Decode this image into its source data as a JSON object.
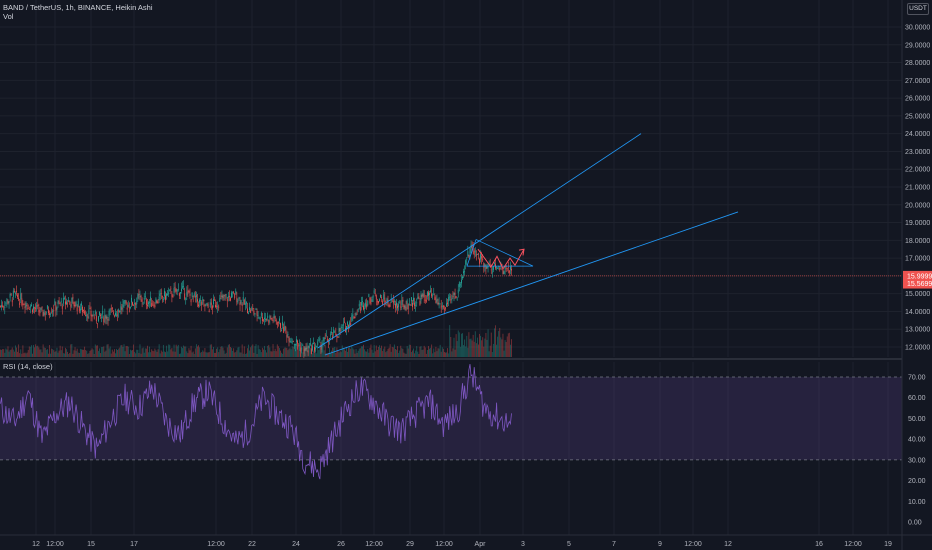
{
  "legend": {
    "symbol": "BAND / TetherUS, 1h, BINANCE, Heikin Ashi",
    "volume": "Vol",
    "rsi": "RSI (14, close)"
  },
  "unit_button": "USDT",
  "colors": {
    "background": "#131722",
    "up": "#26a69a",
    "down": "#ef5350",
    "trendline": "#2196f3",
    "rsi_line": "#7e57c2",
    "rsi_band": "#7e57c2",
    "price_line": "#ef5350",
    "arrow": "#f7525f"
  },
  "chart_data": [
    {
      "type": "candlestick",
      "title": "BAND / TetherUS, 1h, BINANCE, Heikin Ashi",
      "y_axis_ticks": [
        "30.0000",
        "29.0000",
        "28.0000",
        "27.0000",
        "26.0000",
        "25.0000",
        "24.0000",
        "23.0000",
        "22.0000",
        "21.0000",
        "20.0000",
        "19.0000",
        "18.0000",
        "17.0000",
        "16.0000",
        "15.0000",
        "14.0000",
        "13.0000",
        "12.0000"
      ],
      "ylim": [
        11.2,
        31.0
      ],
      "x_axis_ticks": [
        "12",
        "12:00",
        "15",
        "17",
        "12:00",
        "22",
        "24",
        "26",
        "12:00",
        "29",
        "12:00",
        "Apr",
        "3",
        "5",
        "7",
        "9",
        "12:00",
        "12",
        "16",
        "12:00",
        "19"
      ],
      "price_labels": [
        "15.9999",
        "15.5699"
      ],
      "current_price": 15.9999,
      "close_series_approx": {
        "description": "approximate closes per 10 candles, 13 Mar – 1 Apr",
        "values": [
          14.3,
          14.9,
          14.4,
          13.9,
          14.3,
          14.6,
          14.1,
          13.6,
          13.9,
          14.3,
          14.7,
          14.5,
          14.9,
          15.2,
          14.7,
          14.2,
          14.7,
          14.9,
          14.1,
          13.7,
          13.5,
          12.5,
          11.8,
          12.1,
          12.6,
          13.2,
          14.3,
          14.9,
          14.5,
          14.3,
          14.6,
          14.9,
          14.2,
          14.9,
          17.7,
          16.6,
          16.5,
          16.2
        ]
      },
      "annotations": [
        {
          "type": "trendline",
          "from": [
            "24 Mar",
            11.9
          ],
          "to": [
            "8 Apr",
            24.0
          ]
        },
        {
          "type": "trendline",
          "from": [
            "25 Mar",
            11.6
          ],
          "to": [
            "14 Apr",
            19.6
          ]
        },
        {
          "type": "triangle",
          "points": [
            [
              "31 Mar",
              18.1
            ],
            [
              "2 Apr",
              16.6
            ],
            [
              "31 Mar",
              16.4
            ]
          ]
        },
        {
          "type": "path",
          "description": "projected zigzag up arrow",
          "points": [
            [
              "31 Mar",
              17.5
            ],
            [
              "1 Apr",
              16.5
            ],
            [
              "1 Apr",
              17.0
            ],
            [
              "1 Apr",
              16.5
            ],
            [
              "2 Apr",
              17.0
            ],
            [
              "2 Apr",
              16.5
            ],
            [
              "2 Apr",
              17.5
            ]
          ]
        }
      ],
      "volume": {
        "label": "Vol",
        "shown": true
      }
    },
    {
      "type": "line",
      "title": "RSI (14, close)",
      "y_axis_ticks": [
        "70.00",
        "60.00",
        "50.00",
        "40.00",
        "30.00",
        "20.00",
        "10.00",
        "0.00"
      ],
      "ylim": [
        -5,
        80
      ],
      "bands": [
        30,
        70
      ],
      "values_approx": [
        55,
        48,
        62,
        40,
        52,
        58,
        45,
        35,
        50,
        60,
        55,
        65,
        48,
        42,
        58,
        63,
        50,
        38,
        45,
        60,
        52,
        46,
        30,
        25,
        40,
        55,
        65,
        58,
        48,
        44,
        52,
        58,
        47,
        53,
        72,
        55,
        50,
        47
      ]
    }
  ]
}
